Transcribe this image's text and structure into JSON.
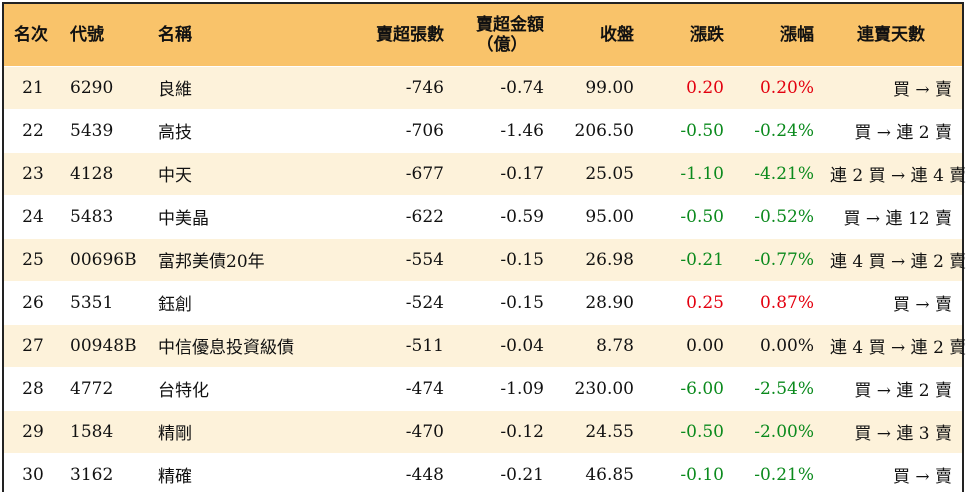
{
  "colors": {
    "header_bg": "#f9c36a",
    "row_alt_bg": "#fdf2da",
    "up": "#e3000f",
    "down": "#0b8a1d"
  },
  "header": {
    "rank": "名次",
    "code": "代號",
    "name": "名稱",
    "net_sold_lots": "賣超張數",
    "net_sold_amount_line1": "賣超金額",
    "net_sold_amount_line2": "（億）",
    "close": "收盤",
    "change": "漲跌",
    "change_pct": "漲幅",
    "streak": "連賣天數"
  },
  "rows": [
    {
      "rank": "21",
      "code": "6290",
      "name": "良維",
      "net_sold_lots": "-746",
      "net_sold_amount": "-0.74",
      "close": "99.00",
      "change": "0.20",
      "change_pct": "0.20%",
      "trend": "up",
      "streak": "買 → 賣"
    },
    {
      "rank": "22",
      "code": "5439",
      "name": "高技",
      "net_sold_lots": "-706",
      "net_sold_amount": "-1.46",
      "close": "206.50",
      "change": "-0.50",
      "change_pct": "-0.24%",
      "trend": "down",
      "streak": "買 → 連 2 賣"
    },
    {
      "rank": "23",
      "code": "4128",
      "name": "中天",
      "net_sold_lots": "-677",
      "net_sold_amount": "-0.17",
      "close": "25.05",
      "change": "-1.10",
      "change_pct": "-4.21%",
      "trend": "down",
      "streak": "連 2 買 → 連 4 賣"
    },
    {
      "rank": "24",
      "code": "5483",
      "name": "中美晶",
      "net_sold_lots": "-622",
      "net_sold_amount": "-0.59",
      "close": "95.00",
      "change": "-0.50",
      "change_pct": "-0.52%",
      "trend": "down",
      "streak": "買 → 連 12 賣"
    },
    {
      "rank": "25",
      "code": "00696B",
      "name": "富邦美債20年",
      "net_sold_lots": "-554",
      "net_sold_amount": "-0.15",
      "close": "26.98",
      "change": "-0.21",
      "change_pct": "-0.77%",
      "trend": "down",
      "streak": "連 4 買 → 連 2 賣"
    },
    {
      "rank": "26",
      "code": "5351",
      "name": "鈺創",
      "net_sold_lots": "-524",
      "net_sold_amount": "-0.15",
      "close": "28.90",
      "change": "0.25",
      "change_pct": "0.87%",
      "trend": "up",
      "streak": "買 → 賣"
    },
    {
      "rank": "27",
      "code": "00948B",
      "name": "中信優息投資級債",
      "net_sold_lots": "-511",
      "net_sold_amount": "-0.04",
      "close": "8.78",
      "change": "0.00",
      "change_pct": "0.00%",
      "trend": "flat",
      "streak": "連 4 買 → 連 2 賣"
    },
    {
      "rank": "28",
      "code": "4772",
      "name": "台特化",
      "net_sold_lots": "-474",
      "net_sold_amount": "-1.09",
      "close": "230.00",
      "change": "-6.00",
      "change_pct": "-2.54%",
      "trend": "down",
      "streak": "買 → 連 2 賣"
    },
    {
      "rank": "29",
      "code": "1584",
      "name": "精剛",
      "net_sold_lots": "-470",
      "net_sold_amount": "-0.12",
      "close": "24.55",
      "change": "-0.50",
      "change_pct": "-2.00%",
      "trend": "down",
      "streak": "買 → 連 3 賣"
    },
    {
      "rank": "30",
      "code": "3162",
      "name": "精確",
      "net_sold_lots": "-448",
      "net_sold_amount": "-0.21",
      "close": "46.85",
      "change": "-0.10",
      "change_pct": "-0.21%",
      "trend": "down",
      "streak": "買 → 賣"
    }
  ]
}
